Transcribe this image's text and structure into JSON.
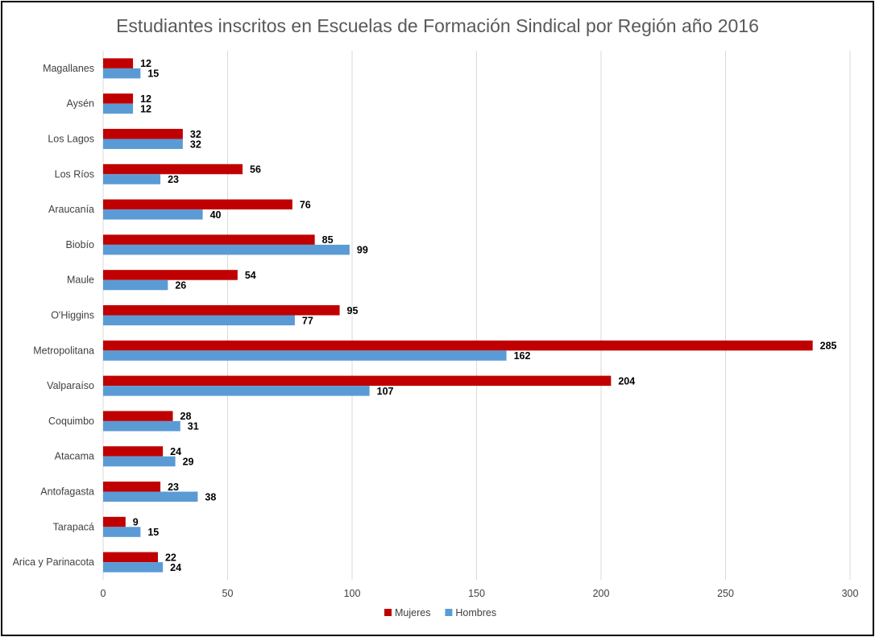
{
  "chart_data": {
    "type": "bar",
    "orientation": "horizontal",
    "title": "Estudiantes inscritos en Escuelas de Formación Sindical por Región año 2016",
    "categories": [
      "Magallanes",
      "Aysén",
      "Los Lagos",
      "Los Ríos",
      "Araucanía",
      "Biobío",
      "Maule",
      "O'Higgins",
      "Metropolitana",
      "Valparaíso",
      "Coquimbo",
      "Atacama",
      "Antofagasta",
      "Tarapacá",
      "Arica y Parinacota"
    ],
    "series": [
      {
        "name": "Mujeres",
        "color": "#c00000",
        "values": [
          12,
          12,
          32,
          56,
          76,
          85,
          54,
          95,
          285,
          204,
          28,
          24,
          23,
          9,
          22
        ]
      },
      {
        "name": "Hombres",
        "color": "#5b9bd5",
        "values": [
          15,
          12,
          32,
          23,
          40,
          99,
          26,
          77,
          162,
          107,
          31,
          29,
          38,
          15,
          24
        ]
      }
    ],
    "xlim": [
      0,
      300
    ],
    "xticks": [
      0,
      50,
      100,
      150,
      200,
      250,
      300
    ],
    "grid": true,
    "data_labels": true,
    "legend_position": "bottom"
  }
}
